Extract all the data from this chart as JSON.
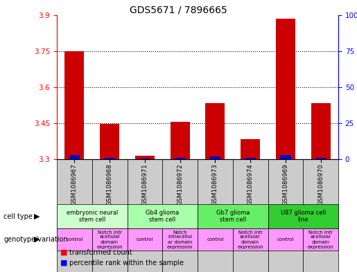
{
  "title": "GDS5671 / 7896665",
  "samples": [
    "GSM1086967",
    "GSM1086968",
    "GSM1086971",
    "GSM1086972",
    "GSM1086973",
    "GSM1086974",
    "GSM1086969",
    "GSM1086970"
  ],
  "red_values": [
    3.75,
    3.447,
    3.315,
    3.455,
    3.535,
    3.385,
    3.885,
    3.535
  ],
  "blue_pct": [
    3,
    1,
    0,
    1,
    2,
    1,
    3,
    1
  ],
  "y_min": 3.3,
  "y_max": 3.9,
  "y_ticks": [
    3.3,
    3.45,
    3.6,
    3.75,
    3.9
  ],
  "y_right_ticks": [
    0,
    25,
    50,
    75,
    100
  ],
  "cell_type_groups": [
    {
      "label": "embryonic neural\nstem cell",
      "start": 0,
      "end": 2,
      "color": "#ccffcc"
    },
    {
      "label": "Gb4 glioma\nstem cell",
      "start": 2,
      "end": 4,
      "color": "#aaffaa"
    },
    {
      "label": "Gb7 glioma\nstem cell",
      "start": 4,
      "end": 6,
      "color": "#66ee66"
    },
    {
      "label": "U87 glioma cell\nline",
      "start": 6,
      "end": 8,
      "color": "#33cc33"
    }
  ],
  "genotype_groups": [
    {
      "label": "control",
      "start": 0,
      "end": 1
    },
    {
      "label": "Notch intr\nacellular\ndomain\nexpression",
      "start": 1,
      "end": 2
    },
    {
      "label": "control",
      "start": 2,
      "end": 3
    },
    {
      "label": "Notch\nintracellul\nar domain\nexpression",
      "start": 3,
      "end": 4
    },
    {
      "label": "control",
      "start": 4,
      "end": 5
    },
    {
      "label": "Notch intr\nacellular\ndomain\nexpression",
      "start": 5,
      "end": 6
    },
    {
      "label": "control",
      "start": 6,
      "end": 7
    },
    {
      "label": "Notch intr\nacellular\ndomain\nexpression",
      "start": 7,
      "end": 8
    }
  ],
  "genotype_color": "#ff99ff",
  "red_color": "#cc0000",
  "blue_color": "#0000cc",
  "sample_bg": "#cccccc"
}
